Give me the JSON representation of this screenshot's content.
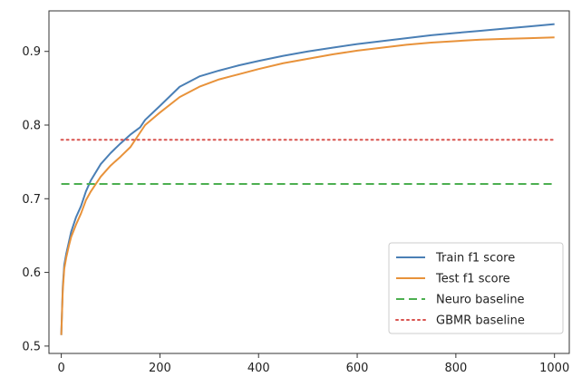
{
  "chart_data": {
    "type": "line",
    "title": "",
    "xlabel": "",
    "ylabel": "",
    "xlim": [
      -25,
      1030
    ],
    "ylim": [
      0.49,
      0.955
    ],
    "xticks": [
      0,
      200,
      400,
      600,
      800,
      1000
    ],
    "xtick_labels": [
      "0",
      "200",
      "400",
      "600",
      "800",
      "1000"
    ],
    "yticks": [
      0.5,
      0.6,
      0.7,
      0.8,
      0.9
    ],
    "ytick_labels": [
      "0.5",
      "0.6",
      "0.7",
      "0.8",
      "0.9"
    ],
    "grid": false,
    "legend_position": "bottom-right",
    "series": [
      {
        "name": "Train f1 score",
        "style": "solid",
        "color": "#4a7fb5",
        "x": [
          0,
          3,
          6,
          10,
          15,
          20,
          30,
          40,
          50,
          60,
          80,
          100,
          120,
          140,
          160,
          170,
          200,
          240,
          280,
          320,
          360,
          400,
          450,
          500,
          550,
          600,
          650,
          700,
          750,
          800,
          850,
          900,
          950,
          1000
        ],
        "y": [
          0.515,
          0.58,
          0.61,
          0.625,
          0.64,
          0.655,
          0.675,
          0.69,
          0.71,
          0.725,
          0.747,
          0.762,
          0.775,
          0.787,
          0.797,
          0.807,
          0.826,
          0.852,
          0.866,
          0.874,
          0.881,
          0.887,
          0.894,
          0.9,
          0.905,
          0.91,
          0.914,
          0.918,
          0.922,
          0.925,
          0.928,
          0.931,
          0.934,
          0.937
        ]
      },
      {
        "name": "Test f1 score",
        "style": "solid",
        "color": "#e8923a",
        "x": [
          0,
          3,
          6,
          10,
          15,
          20,
          30,
          40,
          50,
          60,
          80,
          100,
          120,
          140,
          160,
          170,
          200,
          240,
          280,
          320,
          360,
          400,
          450,
          500,
          550,
          600,
          650,
          700,
          750,
          800,
          850,
          900,
          950,
          1000
        ],
        "y": [
          0.515,
          0.575,
          0.605,
          0.62,
          0.635,
          0.648,
          0.665,
          0.68,
          0.698,
          0.71,
          0.73,
          0.745,
          0.757,
          0.77,
          0.79,
          0.8,
          0.817,
          0.838,
          0.852,
          0.862,
          0.869,
          0.876,
          0.884,
          0.89,
          0.896,
          0.901,
          0.905,
          0.909,
          0.912,
          0.914,
          0.916,
          0.917,
          0.918,
          0.919
        ]
      },
      {
        "name": "Neuro baseline",
        "style": "dashed",
        "color": "#4caf50",
        "x": [
          0,
          1000
        ],
        "y": [
          0.72,
          0.72
        ]
      },
      {
        "name": "GBMR baseline",
        "style": "dotted",
        "color": "#d9534f",
        "x": [
          0,
          1000
        ],
        "y": [
          0.78,
          0.78
        ]
      }
    ]
  }
}
